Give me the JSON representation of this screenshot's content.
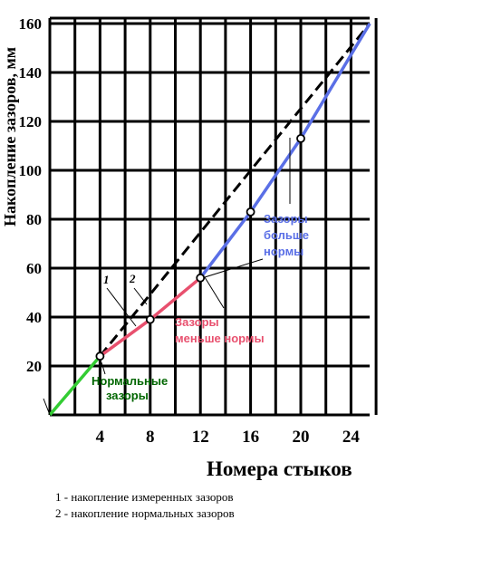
{
  "chart_data": {
    "type": "line",
    "xlabel": "Номера  стыков",
    "ylabel": "Накопление зазоров, мм",
    "xlim": [
      0,
      26
    ],
    "ylim": [
      0,
      160
    ],
    "x_ticks": [
      "4",
      "8",
      "12",
      "16",
      "20",
      "24"
    ],
    "y_ticks": [
      "20",
      "40",
      "60",
      "80",
      "100",
      "120",
      "140",
      "160"
    ],
    "grid": true,
    "series": [
      {
        "name": "1",
        "style": "solid",
        "points": [
          [
            0,
            0
          ],
          [
            4,
            24
          ],
          [
            8,
            39
          ],
          [
            12,
            56
          ],
          [
            16,
            83
          ],
          [
            20,
            113
          ],
          [
            25.5,
            160
          ]
        ],
        "segments": [
          {
            "from": 0,
            "to": 4,
            "color": "#33cc33"
          },
          {
            "from": 4,
            "to": 12,
            "color": "#e8506e"
          },
          {
            "from": 12,
            "to": 25.5,
            "color": "#5a6fe6"
          }
        ],
        "markers": [
          [
            4,
            24
          ],
          [
            8,
            39
          ],
          [
            12,
            56
          ],
          [
            16,
            83
          ],
          [
            20,
            113
          ]
        ]
      },
      {
        "name": "2",
        "style": "dashed",
        "color": "#000000",
        "points": [
          [
            4,
            24
          ],
          [
            25.5,
            160
          ]
        ]
      }
    ],
    "annotations": [
      {
        "lines": [
          "Нормальные",
          "зазоры"
        ],
        "color": "#006600"
      },
      {
        "lines": [
          "Зазоры",
          "меньше нормы"
        ],
        "color": "#e8506e"
      },
      {
        "lines": [
          "Зазоры",
          "больше",
          "нормы"
        ],
        "color": "#5a6fe6"
      }
    ],
    "notes": [
      "1 - накопление измеренных зазоров",
      "2 - накопление нормальных зазоров"
    ]
  }
}
